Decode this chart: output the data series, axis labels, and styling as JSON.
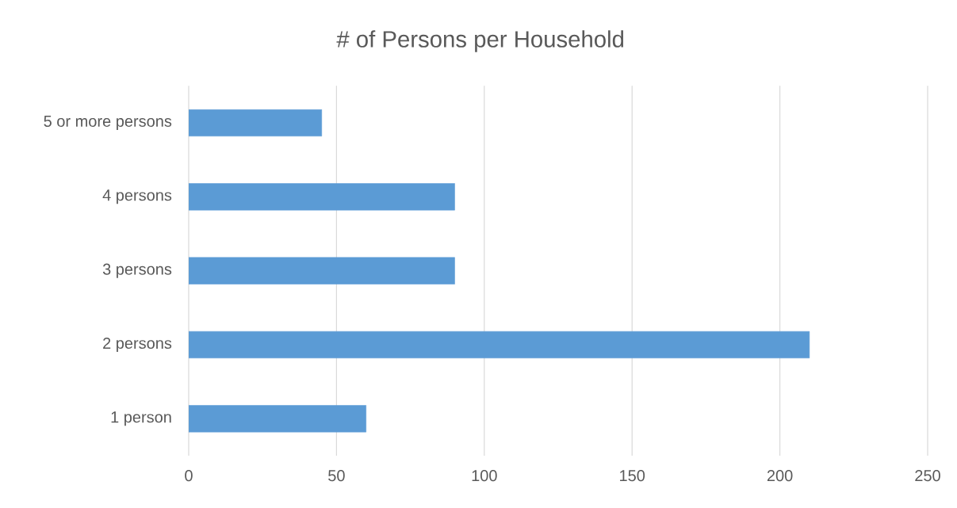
{
  "chart_data": {
    "type": "bar",
    "orientation": "horizontal",
    "title": "# of Persons per Household",
    "categories": [
      "5 or more persons",
      "4 persons",
      "3 persons",
      "2 persons",
      "1 person"
    ],
    "values": [
      45,
      90,
      90,
      210,
      60
    ],
    "color": "#5b9bd5",
    "xlim": [
      0,
      250
    ],
    "xticks": [
      0,
      50,
      100,
      150,
      200,
      250
    ],
    "grid": "x"
  }
}
